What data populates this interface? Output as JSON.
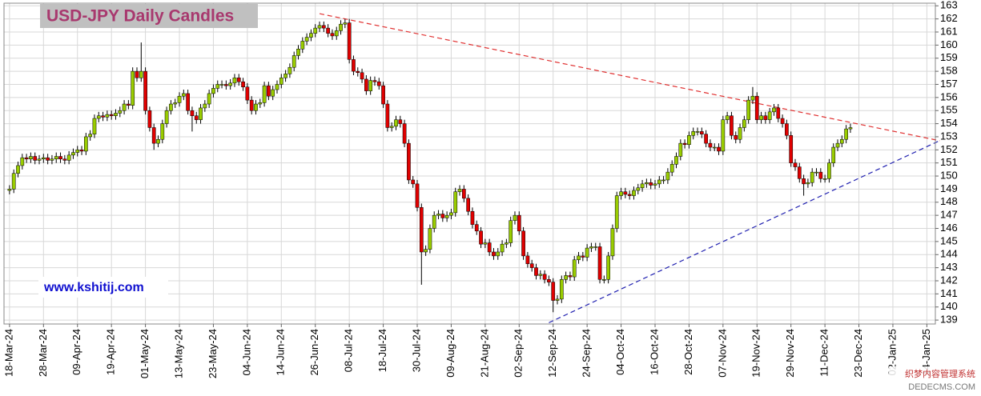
{
  "chart_data": {
    "type": "candlestick",
    "title": "USD-JPY Daily Candles",
    "annotation": "www.kshitij.com",
    "watermark": [
      "织梦内容管理系统",
      "DEDECMS.COM"
    ],
    "up_color": "#99cc00",
    "down_color": "#e00000",
    "grid": true,
    "xlim": [
      -1.3,
      218
    ],
    "ylim": [
      138.7,
      163.2
    ],
    "yticks": [
      139,
      140,
      141,
      142,
      143,
      144,
      145,
      146,
      147,
      148,
      149,
      150,
      151,
      152,
      153,
      154,
      155,
      156,
      157,
      158,
      159,
      160,
      161,
      162,
      163
    ],
    "xticks": [
      {
        "value": 0,
        "label": "18-Mar-24"
      },
      {
        "value": 8,
        "label": "28-Mar-24"
      },
      {
        "value": 16,
        "label": "09-Apr-24"
      },
      {
        "value": 24,
        "label": "19-Apr-24"
      },
      {
        "value": 32,
        "label": "01-May-24"
      },
      {
        "value": 40,
        "label": "13-May-24"
      },
      {
        "value": 48,
        "label": "23-May-24"
      },
      {
        "value": 56,
        "label": "04-Jun-24"
      },
      {
        "value": 64,
        "label": "14-Jun-24"
      },
      {
        "value": 72,
        "label": "26-Jun-24"
      },
      {
        "value": 80,
        "label": "08-Jul-24"
      },
      {
        "value": 88,
        "label": "18-Jul-24"
      },
      {
        "value": 96,
        "label": "30-Jul-24"
      },
      {
        "value": 104,
        "label": "09-Aug-24"
      },
      {
        "value": 112,
        "label": "21-Aug-24"
      },
      {
        "value": 120,
        "label": "02-Sep-24"
      },
      {
        "value": 128,
        "label": "12-Sep-24"
      },
      {
        "value": 136,
        "label": "24-Sep-24"
      },
      {
        "value": 144,
        "label": "04-Oct-24"
      },
      {
        "value": 152,
        "label": "16-Oct-24"
      },
      {
        "value": 160,
        "label": "28-Oct-24"
      },
      {
        "value": 168,
        "label": "07-Nov-24"
      },
      {
        "value": 176,
        "label": "19-Nov-24"
      },
      {
        "value": 184,
        "label": "29-Nov-24"
      },
      {
        "value": 192,
        "label": "11-Dec-24"
      },
      {
        "value": 200,
        "label": "23-Dec-24"
      },
      {
        "value": 208,
        "label": "02-Jan-25"
      },
      {
        "value": 216,
        "label": "14-Jan-25"
      }
    ],
    "trendlines": [
      {
        "color": "#e03030",
        "x": [
          73,
          219
        ],
        "y": [
          162.4,
          152.7
        ]
      },
      {
        "color": "#2020b0",
        "x": [
          127,
          219
        ],
        "y": [
          138.8,
          152.7
        ]
      }
    ],
    "candles": [
      [
        148.9,
        149.3,
        148.6,
        149.0
      ],
      [
        149.0,
        150.5,
        148.7,
        150.2
      ],
      [
        150.2,
        151.1,
        149.9,
        150.8
      ],
      [
        150.8,
        151.7,
        150.5,
        151.4
      ],
      [
        151.4,
        151.7,
        151.0,
        151.3
      ],
      [
        151.3,
        151.8,
        151.0,
        151.5
      ],
      [
        151.5,
        151.8,
        150.9,
        151.2
      ],
      [
        151.2,
        151.6,
        150.9,
        151.3
      ],
      [
        151.3,
        151.7,
        151.0,
        151.4
      ],
      [
        151.4,
        151.7,
        150.9,
        151.2
      ],
      [
        151.2,
        151.6,
        150.9,
        151.3
      ],
      [
        151.3,
        151.8,
        151.0,
        151.5
      ],
      [
        151.5,
        151.8,
        151.0,
        151.3
      ],
      [
        151.3,
        151.6,
        150.9,
        151.2
      ],
      [
        151.2,
        151.9,
        150.9,
        151.6
      ],
      [
        151.6,
        152.1,
        151.3,
        151.8
      ],
      [
        151.8,
        152.3,
        151.5,
        152.0
      ],
      [
        152.0,
        152.3,
        151.6,
        151.9
      ],
      [
        151.9,
        153.3,
        151.6,
        153.0
      ],
      [
        153.0,
        153.5,
        152.7,
        153.2
      ],
      [
        153.2,
        154.7,
        152.9,
        154.4
      ],
      [
        154.4,
        154.9,
        154.1,
        154.6
      ],
      [
        154.6,
        154.9,
        154.2,
        154.5
      ],
      [
        154.5,
        155.0,
        154.2,
        154.7
      ],
      [
        154.7,
        155.0,
        154.3,
        154.6
      ],
      [
        154.6,
        155.1,
        154.3,
        154.8
      ],
      [
        154.8,
        155.3,
        154.5,
        155.0
      ],
      [
        155.0,
        155.8,
        154.7,
        155.5
      ],
      [
        155.5,
        155.8,
        155.1,
        155.4
      ],
      [
        155.4,
        158.3,
        155.1,
        158.0
      ],
      [
        158.0,
        158.3,
        157.2,
        157.5
      ],
      [
        157.5,
        160.2,
        157.2,
        158.0
      ],
      [
        158.0,
        158.3,
        154.7,
        155.0
      ],
      [
        155.0,
        155.3,
        153.4,
        153.7
      ],
      [
        153.7,
        154.0,
        152.0,
        152.5
      ],
      [
        152.5,
        153.1,
        152.2,
        152.8
      ],
      [
        152.8,
        154.3,
        152.5,
        154.0
      ],
      [
        154.0,
        155.3,
        153.7,
        155.0
      ],
      [
        155.0,
        155.8,
        154.7,
        155.5
      ],
      [
        155.5,
        155.9,
        155.2,
        155.6
      ],
      [
        155.6,
        156.4,
        155.3,
        156.1
      ],
      [
        156.1,
        156.6,
        155.8,
        156.3
      ],
      [
        156.3,
        156.6,
        154.7,
        155.0
      ],
      [
        155.0,
        155.3,
        153.4,
        154.6
      ],
      [
        154.6,
        154.9,
        154.0,
        154.3
      ],
      [
        154.3,
        155.5,
        154.0,
        155.2
      ],
      [
        155.2,
        155.8,
        154.9,
        155.5
      ],
      [
        155.5,
        156.6,
        155.2,
        156.3
      ],
      [
        156.3,
        157.0,
        156.0,
        156.7
      ],
      [
        156.7,
        157.3,
        156.4,
        157.0
      ],
      [
        157.0,
        157.3,
        156.7,
        157.0
      ],
      [
        157.0,
        157.3,
        156.6,
        156.9
      ],
      [
        156.9,
        157.4,
        156.6,
        157.1
      ],
      [
        157.1,
        157.8,
        156.8,
        157.5
      ],
      [
        157.5,
        157.8,
        156.9,
        157.2
      ],
      [
        157.2,
        157.5,
        156.5,
        156.8
      ],
      [
        156.8,
        157.1,
        155.5,
        155.8
      ],
      [
        155.8,
        156.1,
        154.7,
        155.0
      ],
      [
        155.0,
        155.8,
        154.7,
        155.5
      ],
      [
        155.5,
        155.9,
        155.2,
        155.6
      ],
      [
        155.6,
        157.2,
        155.3,
        156.9
      ],
      [
        156.9,
        157.2,
        155.8,
        156.1
      ],
      [
        156.1,
        156.9,
        155.8,
        156.6
      ],
      [
        156.6,
        157.3,
        156.3,
        157.0
      ],
      [
        157.0,
        157.8,
        156.7,
        157.5
      ],
      [
        157.5,
        158.1,
        157.2,
        157.8
      ],
      [
        157.8,
        158.6,
        157.5,
        158.3
      ],
      [
        158.3,
        159.5,
        158.0,
        159.2
      ],
      [
        159.2,
        160.0,
        158.9,
        159.7
      ],
      [
        159.7,
        160.6,
        159.4,
        160.3
      ],
      [
        160.3,
        160.9,
        160.0,
        160.6
      ],
      [
        160.6,
        161.2,
        160.3,
        160.9
      ],
      [
        160.9,
        161.6,
        160.6,
        161.3
      ],
      [
        161.3,
        161.8,
        161.0,
        161.5
      ],
      [
        161.5,
        161.8,
        161.0,
        161.3
      ],
      [
        161.3,
        161.6,
        160.6,
        160.9
      ],
      [
        160.9,
        161.2,
        160.4,
        160.7
      ],
      [
        160.7,
        161.4,
        160.4,
        161.1
      ],
      [
        161.1,
        161.9,
        160.8,
        161.6
      ],
      [
        161.6,
        162.0,
        161.3,
        161.7
      ],
      [
        161.7,
        162.0,
        158.6,
        158.9
      ],
      [
        158.9,
        159.2,
        157.7,
        158.0
      ],
      [
        158.0,
        158.3,
        157.6,
        157.9
      ],
      [
        157.9,
        158.2,
        157.1,
        157.4
      ],
      [
        157.4,
        157.7,
        156.2,
        156.5
      ],
      [
        156.5,
        157.6,
        156.2,
        157.3
      ],
      [
        157.3,
        157.6,
        156.9,
        157.2
      ],
      [
        157.2,
        157.5,
        156.6,
        156.9
      ],
      [
        156.9,
        157.2,
        155.2,
        155.5
      ],
      [
        155.5,
        155.8,
        153.4,
        153.7
      ],
      [
        153.7,
        154.1,
        153.4,
        153.8
      ],
      [
        153.8,
        154.6,
        153.5,
        154.3
      ],
      [
        154.3,
        154.6,
        153.7,
        154.0
      ],
      [
        154.0,
        154.3,
        152.2,
        152.5
      ],
      [
        152.5,
        152.8,
        149.4,
        149.7
      ],
      [
        149.7,
        150.0,
        149.1,
        149.4
      ],
      [
        149.4,
        149.7,
        147.3,
        147.6
      ],
      [
        147.6,
        147.9,
        141.7,
        144.2
      ],
      [
        144.2,
        144.7,
        143.9,
        144.4
      ],
      [
        144.4,
        146.3,
        144.1,
        146.0
      ],
      [
        146.0,
        147.3,
        145.7,
        147.0
      ],
      [
        147.0,
        147.4,
        146.7,
        147.1
      ],
      [
        147.1,
        147.4,
        146.5,
        146.8
      ],
      [
        146.8,
        147.3,
        146.5,
        147.0
      ],
      [
        147.0,
        147.5,
        146.7,
        147.2
      ],
      [
        147.2,
        149.1,
        146.9,
        148.8
      ],
      [
        148.8,
        149.3,
        148.5,
        149.0
      ],
      [
        149.0,
        149.3,
        148.0,
        148.3
      ],
      [
        148.3,
        148.6,
        147.0,
        147.3
      ],
      [
        147.3,
        147.6,
        146.0,
        146.3
      ],
      [
        146.3,
        146.6,
        145.5,
        145.8
      ],
      [
        145.8,
        146.1,
        144.5,
        144.8
      ],
      [
        144.8,
        145.2,
        144.5,
        144.9
      ],
      [
        144.9,
        145.2,
        143.9,
        144.2
      ],
      [
        144.2,
        144.5,
        143.6,
        143.9
      ],
      [
        143.9,
        144.5,
        143.6,
        144.2
      ],
      [
        144.2,
        145.1,
        143.9,
        144.8
      ],
      [
        144.8,
        145.2,
        144.5,
        144.9
      ],
      [
        144.9,
        146.9,
        144.6,
        146.6
      ],
      [
        146.6,
        147.3,
        146.3,
        147.0
      ],
      [
        147.0,
        147.3,
        145.5,
        145.8
      ],
      [
        145.8,
        146.1,
        143.6,
        143.9
      ],
      [
        143.9,
        144.2,
        143.0,
        143.3
      ],
      [
        143.3,
        143.6,
        142.7,
        143.0
      ],
      [
        143.0,
        143.3,
        142.1,
        142.4
      ],
      [
        142.4,
        142.8,
        142.1,
        142.5
      ],
      [
        142.5,
        142.8,
        141.8,
        142.1
      ],
      [
        142.1,
        142.4,
        141.6,
        141.9
      ],
      [
        141.9,
        142.2,
        139.6,
        140.5
      ],
      [
        140.5,
        140.9,
        140.2,
        140.6
      ],
      [
        140.6,
        142.4,
        140.3,
        142.1
      ],
      [
        142.1,
        142.7,
        141.8,
        142.4
      ],
      [
        142.4,
        142.7,
        142.0,
        142.3
      ],
      [
        142.3,
        143.9,
        142.0,
        143.6
      ],
      [
        143.6,
        144.2,
        143.3,
        143.9
      ],
      [
        143.9,
        144.2,
        143.5,
        143.8
      ],
      [
        143.8,
        144.8,
        143.5,
        144.5
      ],
      [
        144.5,
        144.9,
        144.2,
        144.6
      ],
      [
        144.6,
        144.9,
        144.3,
        144.6
      ],
      [
        144.6,
        144.9,
        141.8,
        142.1
      ],
      [
        142.1,
        142.4,
        141.8,
        142.1
      ],
      [
        142.1,
        144.2,
        141.8,
        143.9
      ],
      [
        143.9,
        146.3,
        143.6,
        146.0
      ],
      [
        146.0,
        148.8,
        145.7,
        148.5
      ],
      [
        148.5,
        149.1,
        148.2,
        148.8
      ],
      [
        148.8,
        149.1,
        148.3,
        148.6
      ],
      [
        148.6,
        148.9,
        148.2,
        148.5
      ],
      [
        148.5,
        149.2,
        148.2,
        148.9
      ],
      [
        148.9,
        149.4,
        148.6,
        149.1
      ],
      [
        149.1,
        149.7,
        148.8,
        149.4
      ],
      [
        149.4,
        149.8,
        149.1,
        149.5
      ],
      [
        149.5,
        149.8,
        149.0,
        149.3
      ],
      [
        149.3,
        149.7,
        149.0,
        149.4
      ],
      [
        149.4,
        150.0,
        149.1,
        149.7
      ],
      [
        149.7,
        150.0,
        149.4,
        149.7
      ],
      [
        149.7,
        150.6,
        149.4,
        150.3
      ],
      [
        150.3,
        151.2,
        150.0,
        150.9
      ],
      [
        150.9,
        151.8,
        150.6,
        151.5
      ],
      [
        151.5,
        152.8,
        151.2,
        152.5
      ],
      [
        152.5,
        152.8,
        152.1,
        152.4
      ],
      [
        152.4,
        153.4,
        152.1,
        153.1
      ],
      [
        153.1,
        153.7,
        152.8,
        153.4
      ],
      [
        153.4,
        153.7,
        153.1,
        153.4
      ],
      [
        153.4,
        153.7,
        152.9,
        153.2
      ],
      [
        153.2,
        153.5,
        152.2,
        152.5
      ],
      [
        152.5,
        152.8,
        151.9,
        152.2
      ],
      [
        152.2,
        152.5,
        151.9,
        152.2
      ],
      [
        152.2,
        152.5,
        151.6,
        151.9
      ],
      [
        151.9,
        154.6,
        151.6,
        154.3
      ],
      [
        154.3,
        154.9,
        154.0,
        154.6
      ],
      [
        154.6,
        154.9,
        152.8,
        153.1
      ],
      [
        153.1,
        153.4,
        152.5,
        152.8
      ],
      [
        152.8,
        154.0,
        152.5,
        153.7
      ],
      [
        153.7,
        154.6,
        153.4,
        154.3
      ],
      [
        154.3,
        156.1,
        154.0,
        155.8
      ],
      [
        155.8,
        156.8,
        155.5,
        156.1
      ],
      [
        156.1,
        156.4,
        154.0,
        154.3
      ],
      [
        154.3,
        154.9,
        154.0,
        154.6
      ],
      [
        154.6,
        154.9,
        154.0,
        154.3
      ],
      [
        154.3,
        155.2,
        154.0,
        154.9
      ],
      [
        154.9,
        155.5,
        154.6,
        155.2
      ],
      [
        155.2,
        155.5,
        154.1,
        154.4
      ],
      [
        154.4,
        154.7,
        153.7,
        154.0
      ],
      [
        154.0,
        154.3,
        152.8,
        153.1
      ],
      [
        153.1,
        153.4,
        150.7,
        151.0
      ],
      [
        151.0,
        151.3,
        150.4,
        150.7
      ],
      [
        150.7,
        151.0,
        149.5,
        149.8
      ],
      [
        149.8,
        150.1,
        148.5,
        149.4
      ],
      [
        149.4,
        149.8,
        149.1,
        149.5
      ],
      [
        149.5,
        150.6,
        149.2,
        150.3
      ],
      [
        150.3,
        150.6,
        150.0,
        150.3
      ],
      [
        150.3,
        150.6,
        149.5,
        149.8
      ],
      [
        149.8,
        150.1,
        149.5,
        149.8
      ],
      [
        149.8,
        151.3,
        149.5,
        151.0
      ],
      [
        151.0,
        152.5,
        150.7,
        152.2
      ],
      [
        152.2,
        152.8,
        151.9,
        152.5
      ],
      [
        152.5,
        153.1,
        152.2,
        152.8
      ],
      [
        152.8,
        153.9,
        152.5,
        153.6
      ],
      [
        153.6,
        154.0,
        153.3,
        153.7
      ]
    ]
  }
}
